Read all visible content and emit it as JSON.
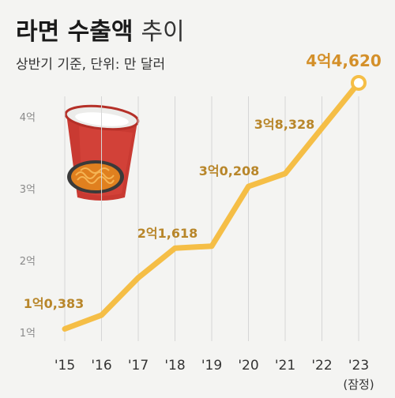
{
  "header": {
    "title_bold": "라면 수출액",
    "title_light": "추이",
    "subtitle": "상반기 기준, 단위: 만 달러"
  },
  "chart_data": {
    "type": "line",
    "title": "라면 수출액 추이",
    "subtitle": "상반기 기준, 단위: 만 달러",
    "categories": [
      "'15",
      "'16",
      "'17",
      "'18",
      "'19",
      "'20",
      "'21",
      "'22",
      "'23"
    ],
    "x_note": "(잠정)",
    "values": [
      10383,
      12300,
      17500,
      21618,
      21900,
      30208,
      32000,
      38328,
      44620
    ],
    "data_labels": [
      {
        "index": 0,
        "text": "1억0,383"
      },
      {
        "index": 3,
        "text": "2억1,618"
      },
      {
        "index": 5,
        "text": "3억0,208"
      },
      {
        "index": 7,
        "text": "3억8,328"
      },
      {
        "index": 8,
        "text": "4억4,620"
      }
    ],
    "yticks": [
      {
        "value": 10000,
        "label": "1억"
      },
      {
        "value": 20000,
        "label": "2억"
      },
      {
        "value": 30000,
        "label": "3억"
      },
      {
        "value": 40000,
        "label": "4억"
      }
    ],
    "ylim": [
      10000,
      45000
    ],
    "grid": "vertical",
    "colors": {
      "line": "#f5be46",
      "label": "#b8862a",
      "highlight": "#d4902a",
      "grid": "#d6d6d6"
    }
  }
}
